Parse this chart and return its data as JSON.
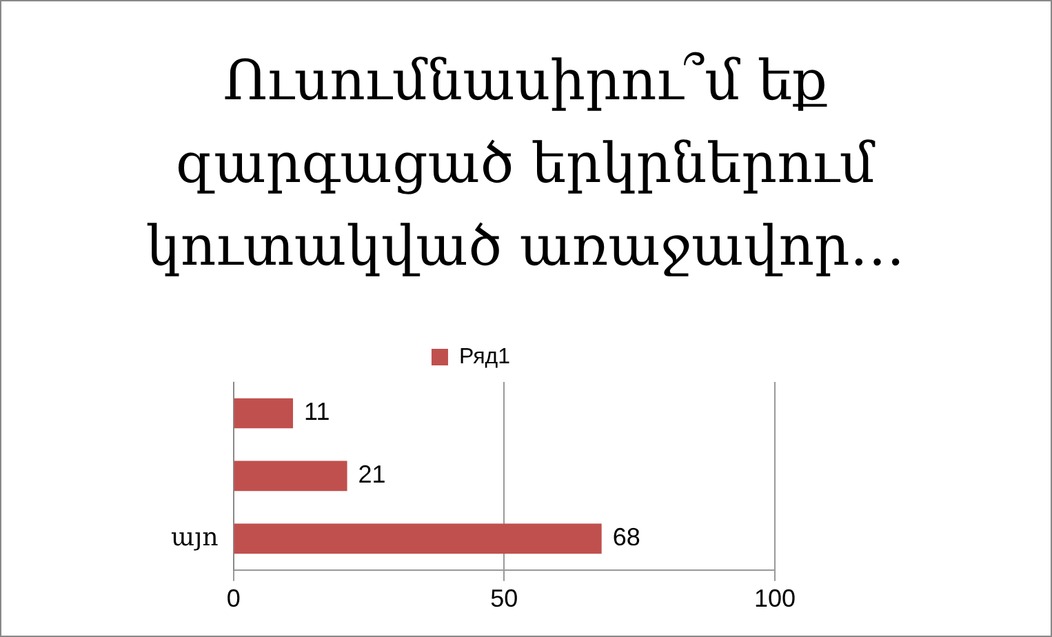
{
  "chart_data": {
    "type": "bar",
    "orientation": "horizontal",
    "title": "Ուսումնասիրու՞մ եք զարգացած երկրներում կուտակված առաջավոր…",
    "categories": [
      null,
      null,
      "այո"
    ],
    "series": [
      {
        "name": "Ряд1",
        "color": "#c0504d",
        "values": [
          11,
          21,
          68
        ]
      }
    ],
    "xlim": [
      0,
      100
    ],
    "xticks": [
      0,
      50,
      100
    ],
    "grid": "x",
    "legend": "top",
    "data_labels": true
  }
}
